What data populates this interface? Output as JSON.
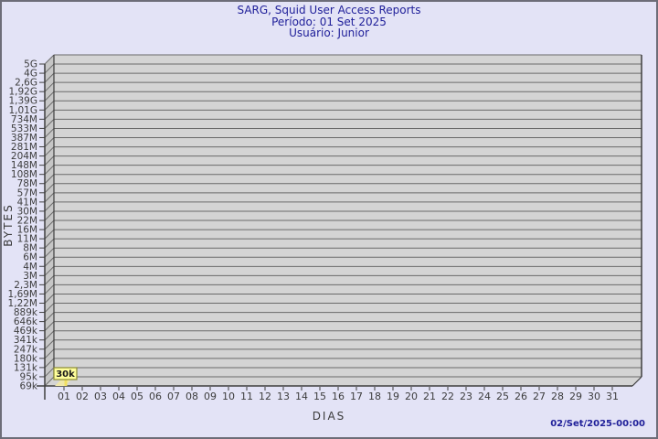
{
  "header": {
    "title": "SARG, Squid User Access Reports",
    "period": "Período: 01 Set 2025",
    "user": "Usuário: Junior"
  },
  "footer": {
    "timestamp": "02/Set/2025-00:00"
  },
  "chart_data": {
    "type": "area",
    "title": "SARG, Squid User Access Reports",
    "subtitle": [
      "Período: 01 Set 2025",
      "Usuário: Junior"
    ],
    "xlabel": "DIAS",
    "ylabel": "BYTES",
    "x_ticks": [
      "01",
      "02",
      "03",
      "04",
      "05",
      "06",
      "07",
      "08",
      "09",
      "10",
      "11",
      "12",
      "13",
      "14",
      "15",
      "16",
      "17",
      "18",
      "19",
      "20",
      "21",
      "22",
      "23",
      "24",
      "25",
      "26",
      "27",
      "28",
      "29",
      "30",
      "31"
    ],
    "y_ticks": [
      "5G",
      "4G",
      "2,6G",
      "1,92G",
      "1,39G",
      "1,01G",
      "734M",
      "533M",
      "387M",
      "281M",
      "204M",
      "148M",
      "108M",
      "78M",
      "57M",
      "41M",
      "30M",
      "22M",
      "16M",
      "11M",
      "8M",
      "6M",
      "4M",
      "3M",
      "2,3M",
      "1,69M",
      "1,22M",
      "889k",
      "646k",
      "469k",
      "341k",
      "247k",
      "180k",
      "131k",
      "95k",
      "69k"
    ],
    "ylim": [
      "69k",
      "5G"
    ],
    "grid": "horizontal",
    "points": [
      {
        "x": "01",
        "value_bytes": 30000,
        "label": "30k"
      }
    ],
    "colors": {
      "background": "#e3e3f6",
      "plot_fill": "#d4d4d4",
      "wall_fill": "#c6c6c6",
      "grid_line": "#6a6a6a",
      "axis_line": "#3f3f3f",
      "title_text": "#20209a",
      "tick_text": "#3d3d3d",
      "tag_fill": "#ffff9c",
      "tag_border": "#8a8a33",
      "tag_text": "#1a1a1a",
      "data_fill": "#efe7a9",
      "data_stem": "#f0df62"
    }
  }
}
